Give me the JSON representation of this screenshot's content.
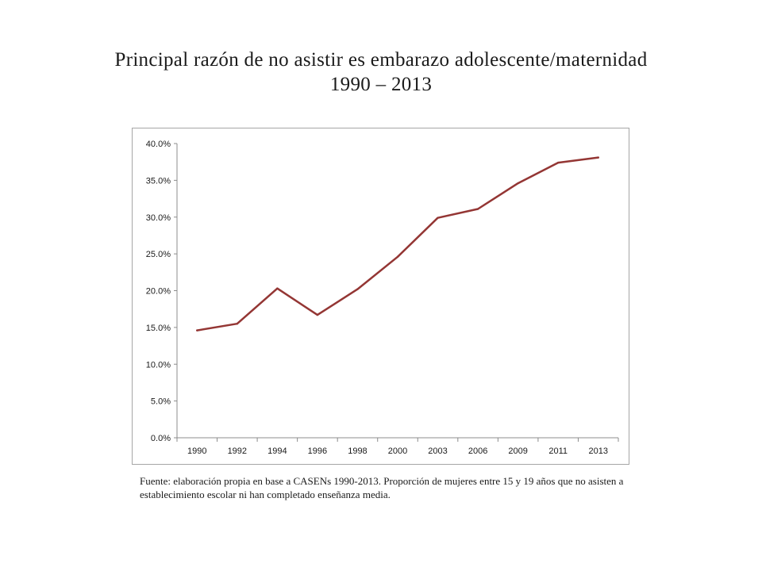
{
  "title": {
    "line1": "Principal razón de no asistir es embarazo adolescente/maternidad",
    "line2": "1990 – 2013"
  },
  "chart_data": {
    "type": "line",
    "categories": [
      "1990",
      "1992",
      "1994",
      "1996",
      "1998",
      "2000",
      "2003",
      "2006",
      "2009",
      "2011",
      "2013"
    ],
    "series": [
      {
        "name": "",
        "values": [
          14.6,
          15.5,
          20.3,
          16.7,
          20.2,
          24.6,
          29.9,
          31.1,
          34.6,
          37.4,
          38.1
        ],
        "color": "#943634"
      }
    ],
    "y_ticks": [
      "0.0%",
      "5.0%",
      "10.0%",
      "15.0%",
      "20.0%",
      "25.0%",
      "30.0%",
      "35.0%",
      "40.0%"
    ],
    "ylim": [
      0,
      40
    ],
    "ystep": 5,
    "unit": "%",
    "grid": false,
    "legend": "none",
    "title": "",
    "xlabel": "",
    "ylabel": ""
  },
  "source": {
    "text": "Fuente: elaboración propia en base a CASENs 1990-2013. Proporción de mujeres entre 15 y 19 años que no asisten a establecimiento escolar ni han completado enseñanza media."
  }
}
